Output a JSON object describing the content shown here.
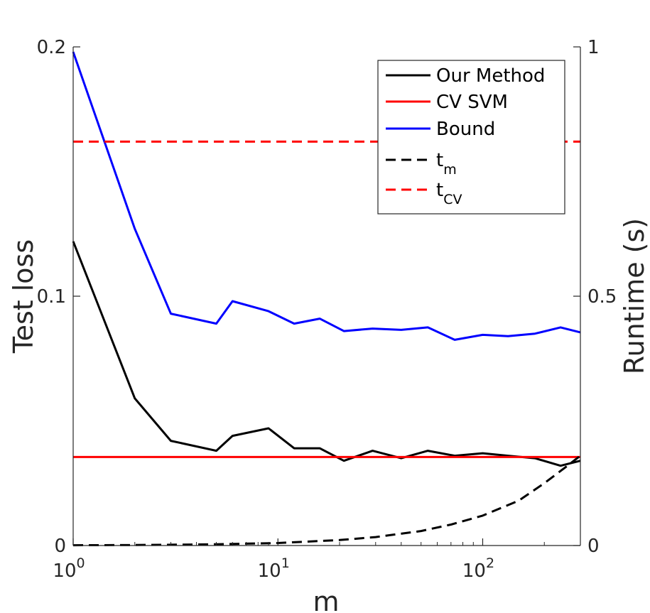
{
  "chart_data": {
    "type": "line",
    "xlabel": "m",
    "ylabel_left": "Test loss",
    "ylabel_right": "Runtime (s)",
    "x_scale": "log",
    "xlim": [
      1,
      300
    ],
    "ylim_left": [
      0,
      0.2
    ],
    "ylim_right": [
      0,
      1
    ],
    "x_ticks": [
      {
        "value": 1,
        "base": "10",
        "exp": "0"
      },
      {
        "value": 10,
        "base": "10",
        "exp": "1"
      },
      {
        "value": 100,
        "base": "10",
        "exp": "2"
      }
    ],
    "y_ticks_left": [
      {
        "value": 0,
        "label": "0"
      },
      {
        "value": 0.1,
        "label": "0.1"
      },
      {
        "value": 0.2,
        "label": "0.2"
      }
    ],
    "y_ticks_right": [
      {
        "value": 0,
        "label": "0"
      },
      {
        "value": 0.5,
        "label": "0.5"
      },
      {
        "value": 1,
        "label": "1"
      }
    ],
    "grid": false,
    "legend_position": "top-right",
    "series": [
      {
        "name": "Our Method",
        "sub": "",
        "axis": "left",
        "color": "#000000",
        "dash": "solid",
        "x": [
          1,
          2,
          3,
          5,
          6,
          9,
          12,
          16,
          21,
          29,
          40,
          54,
          73,
          100,
          133,
          180,
          240,
          300
        ],
        "y": [
          0.122,
          0.059,
          0.042,
          0.038,
          0.044,
          0.047,
          0.039,
          0.039,
          0.034,
          0.038,
          0.035,
          0.038,
          0.036,
          0.037,
          0.036,
          0.035,
          0.032,
          0.034
        ]
      },
      {
        "name": "CV SVM",
        "sub": "",
        "axis": "left",
        "color": "#ff0000",
        "dash": "solid",
        "x": [
          1,
          300
        ],
        "y": [
          0.0355,
          0.0355
        ]
      },
      {
        "name": "Bound",
        "sub": "",
        "axis": "left",
        "color": "#0000ff",
        "dash": "solid",
        "x": [
          1,
          2,
          3,
          5,
          6,
          9,
          12,
          16,
          21,
          29,
          40,
          54,
          73,
          100,
          133,
          180,
          240,
          300
        ],
        "y": [
          0.198,
          0.127,
          0.093,
          0.089,
          0.098,
          0.094,
          0.089,
          0.091,
          0.086,
          0.087,
          0.0865,
          0.0875,
          0.0825,
          0.0845,
          0.084,
          0.085,
          0.0875,
          0.0855
        ]
      },
      {
        "name": "t",
        "sub": "m",
        "axis": "right",
        "color": "#000000",
        "dash": "dashed",
        "x": [
          1,
          2,
          3,
          5,
          10,
          20,
          30,
          50,
          70,
          100,
          150,
          200,
          250,
          300
        ],
        "y": [
          0.0005,
          0.001,
          0.0015,
          0.0025,
          0.005,
          0.011,
          0.017,
          0.029,
          0.042,
          0.06,
          0.09,
          0.125,
          0.155,
          0.18
        ]
      },
      {
        "name": "t",
        "sub": "CV",
        "axis": "right",
        "color": "#ff0000",
        "dash": "dashed",
        "x": [
          1,
          300
        ],
        "y": [
          0.81,
          0.81
        ]
      }
    ]
  }
}
